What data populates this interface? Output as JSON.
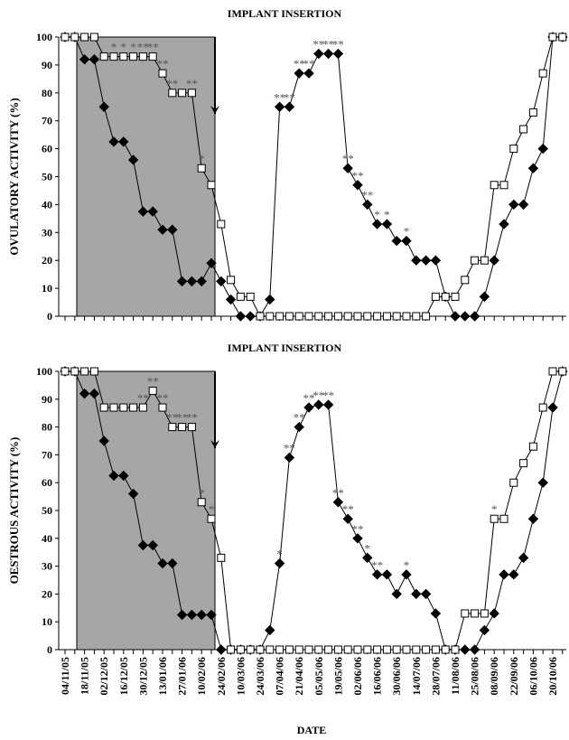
{
  "chart_data": [
    {
      "type": "line",
      "title": "IMPLANT INSERTION",
      "y_label": "OVULATORY ACTIVITY (%)",
      "categories": [
        null,
        null,
        null,
        null,
        null,
        null,
        null,
        null,
        null,
        null,
        null,
        null,
        null,
        null,
        null,
        null,
        null,
        null,
        null,
        null,
        null,
        null,
        null,
        null,
        null,
        null,
        null,
        null,
        null,
        null,
        null,
        null,
        null,
        null,
        null,
        null,
        null,
        null,
        null,
        null,
        null,
        null,
        null,
        null,
        null,
        null,
        null,
        null,
        null,
        null,
        null,
        null
      ],
      "ylim": [
        0,
        100
      ],
      "yticks": [
        0,
        10,
        20,
        30,
        40,
        50,
        60,
        70,
        80,
        90,
        100
      ],
      "series": [
        {
          "marker": "diamond",
          "color": "#000000",
          "values": [
            100,
            100,
            92,
            92,
            75,
            62.5,
            62.5,
            56,
            37.5,
            37.5,
            31,
            31,
            12.5,
            12.5,
            12.5,
            19,
            12.5,
            6,
            0,
            0,
            0,
            6,
            75,
            75,
            87,
            87,
            94,
            94,
            94,
            53,
            47,
            40,
            33,
            33,
            27,
            27,
            20,
            20,
            20,
            7,
            0,
            0,
            0,
            7,
            20,
            33,
            40,
            40,
            53,
            60,
            100,
            100
          ]
        },
        {
          "marker": "square",
          "color": "#ffffff",
          "values": [
            100,
            100,
            100,
            100,
            93,
            93,
            93,
            93,
            93,
            93,
            87,
            80,
            80,
            80,
            53,
            47,
            33,
            13,
            7,
            7,
            0,
            0,
            0,
            0,
            0,
            0,
            0,
            0,
            0,
            0,
            0,
            0,
            0,
            0,
            0,
            0,
            0,
            0,
            7,
            7,
            7,
            13,
            20,
            20,
            47,
            47,
            60,
            67,
            73,
            87,
            100,
            100
          ]
        }
      ],
      "annotations": [
        {
          "index": 5,
          "text": "*"
        },
        {
          "index": 6,
          "text": "*"
        },
        {
          "index": 7,
          "text": "*"
        },
        {
          "index": 8,
          "text": "**"
        },
        {
          "index": 9,
          "text": "**"
        },
        {
          "index": 10,
          "text": "**"
        },
        {
          "index": 11,
          "text": "**"
        },
        {
          "index": 13,
          "text": "**"
        },
        {
          "index": 14,
          "text": "*"
        },
        {
          "index": 22,
          "text": "**"
        },
        {
          "index": 23,
          "text": "**"
        },
        {
          "index": 24,
          "text": "**"
        },
        {
          "index": 25,
          "text": "**"
        },
        {
          "index": 26,
          "text": "**"
        },
        {
          "index": 27,
          "text": "**"
        },
        {
          "index": 28,
          "text": "**"
        },
        {
          "index": 29,
          "text": "**"
        },
        {
          "index": 30,
          "text": "**"
        },
        {
          "index": 31,
          "text": "**"
        },
        {
          "index": 32,
          "text": "*"
        },
        {
          "index": 33,
          "text": "*"
        },
        {
          "index": 35,
          "text": "*"
        }
      ]
    },
    {
      "type": "line",
      "title": "IMPLANT INSERTION",
      "y_label": "OESTROUS ACTIVITY (%)",
      "x_label": "DATE",
      "categories": [
        "04/11/05",
        null,
        "18/11/05",
        null,
        "02/12/05",
        null,
        "16/12/05",
        null,
        "30/12/05",
        null,
        "13/01/06",
        null,
        "27/01/06",
        null,
        "10/02/06",
        null,
        "24/02/06",
        null,
        "10/03/06",
        null,
        "24/03/06",
        null,
        "07/04/06",
        null,
        "21/04/06",
        null,
        "05/05/06",
        null,
        "19/05/06",
        null,
        "02/06/06",
        null,
        "16/06/06",
        null,
        "30/06/06",
        null,
        "14/07/06",
        null,
        "28/07/06",
        null,
        "11/08/06",
        null,
        "25/08/06",
        null,
        "08/09/06",
        null,
        "22/09/06",
        null,
        "06/10/06",
        null,
        "20/10/06",
        null
      ],
      "ylim": [
        0,
        100
      ],
      "yticks": [
        0,
        10,
        20,
        30,
        40,
        50,
        60,
        70,
        80,
        90,
        100
      ],
      "series": [
        {
          "marker": "diamond",
          "color": "#000000",
          "values": [
            100,
            100,
            92,
            92,
            75,
            62.5,
            62.5,
            56,
            37.5,
            37.5,
            31,
            31,
            12.5,
            12.5,
            12.5,
            12.5,
            0,
            0,
            0,
            0,
            0,
            7,
            31,
            69,
            80,
            87,
            88,
            88,
            53,
            47,
            40,
            33,
            27,
            27,
            20,
            27,
            20,
            20,
            13,
            0,
            0,
            0,
            0,
            7,
            13,
            27,
            27,
            33,
            47,
            60,
            87,
            100
          ]
        },
        {
          "marker": "square",
          "color": "#ffffff",
          "values": [
            100,
            100,
            100,
            100,
            87,
            87,
            87,
            87,
            87,
            93,
            87,
            80,
            80,
            80,
            53,
            47,
            33,
            0,
            0,
            0,
            0,
            0,
            0,
            0,
            0,
            0,
            0,
            0,
            0,
            0,
            0,
            0,
            0,
            0,
            0,
            0,
            0,
            0,
            0,
            0,
            0,
            13,
            13,
            13,
            47,
            47,
            60,
            67,
            73,
            87,
            100,
            100
          ]
        }
      ],
      "annotations": [
        {
          "index": 8,
          "text": "**"
        },
        {
          "index": 9,
          "text": "**"
        },
        {
          "index": 10,
          "text": "**"
        },
        {
          "index": 11,
          "text": "**"
        },
        {
          "index": 12,
          "text": "**"
        },
        {
          "index": 13,
          "text": "**"
        },
        {
          "index": 14,
          "text": "*"
        },
        {
          "index": 15,
          "text": "*"
        },
        {
          "index": 22,
          "text": "*"
        },
        {
          "index": 23,
          "text": "**"
        },
        {
          "index": 24,
          "text": "**"
        },
        {
          "index": 25,
          "text": "**"
        },
        {
          "index": 26,
          "text": "**"
        },
        {
          "index": 27,
          "text": "**"
        },
        {
          "index": 28,
          "text": "**"
        },
        {
          "index": 29,
          "text": "**"
        },
        {
          "index": 30,
          "text": "**"
        },
        {
          "index": 31,
          "text": "*"
        },
        {
          "index": 32,
          "text": "**"
        },
        {
          "index": 35,
          "text": "*"
        },
        {
          "index": 44,
          "text": "*"
        }
      ]
    }
  ]
}
